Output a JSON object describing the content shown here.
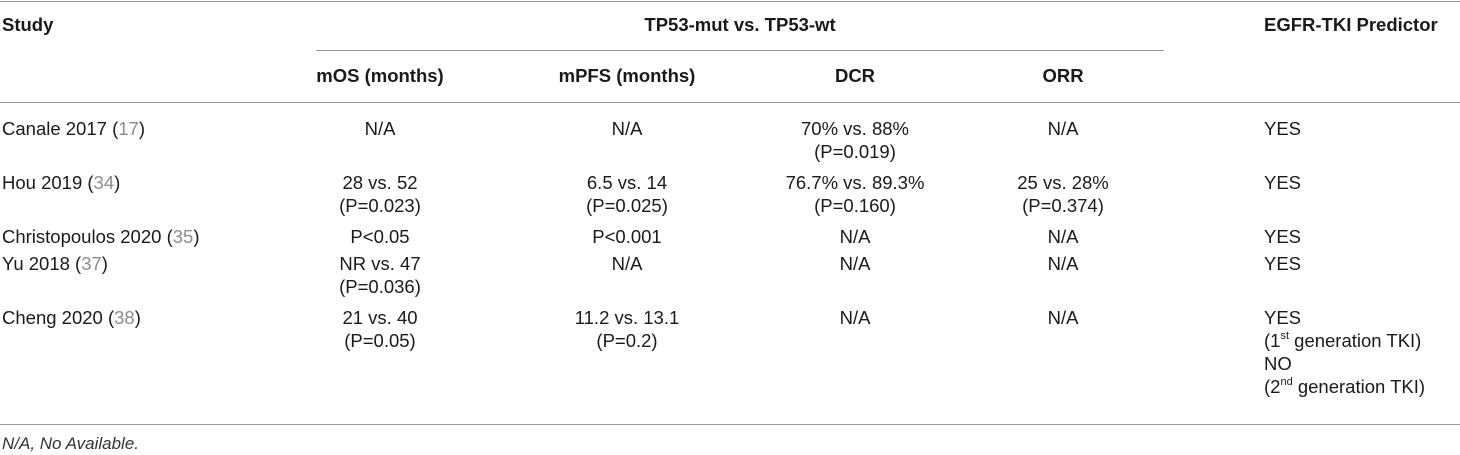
{
  "table": {
    "headers": {
      "study": "Study",
      "group": "TP53-mut vs. TP53-wt",
      "predictor": "EGFR-TKI Predictor",
      "mos": "mOS (months)",
      "mpfs": "mPFS (months)",
      "dcr": "DCR",
      "orr": "ORR"
    },
    "rows": [
      {
        "study": "Canale 2017",
        "ref": "17",
        "mos": [
          "N/A"
        ],
        "mpfs": [
          "N/A"
        ],
        "dcr": [
          "70% vs. 88%",
          "(P=0.019)"
        ],
        "orr": [
          "N/A"
        ],
        "predictor": "YES"
      },
      {
        "study": "Hou 2019",
        "ref": "34",
        "mos": [
          "28 vs. 52",
          "(P=0.023)"
        ],
        "mpfs": [
          "6.5 vs. 14",
          "(P=0.025)"
        ],
        "dcr": [
          "76.7% vs. 89.3%",
          "(P=0.160)"
        ],
        "orr": [
          "25 vs. 28%",
          "(P=0.374)"
        ],
        "predictor": "YES"
      },
      {
        "study": "Christopoulos 2020",
        "ref": "35",
        "mos": [
          "P<0.05"
        ],
        "mpfs": [
          "P<0.001"
        ],
        "dcr": [
          "N/A"
        ],
        "orr": [
          "N/A"
        ],
        "predictor": "YES"
      },
      {
        "study": "Yu 2018",
        "ref": "37",
        "mos": [
          "NR vs. 47",
          "(P=0.036)"
        ],
        "mpfs": [
          "N/A"
        ],
        "dcr": [
          "N/A"
        ],
        "orr": [
          "N/A"
        ],
        "predictor": "YES"
      },
      {
        "study": "Cheng 2020",
        "ref": "38",
        "mos": [
          "21 vs. 40",
          "(P=0.05)"
        ],
        "mpfs": [
          "11.2 vs. 13.1",
          "(P=0.2)"
        ],
        "dcr": [
          "N/A"
        ],
        "orr": [
          "N/A"
        ],
        "predictor": "YES",
        "predictor_detail": [
          {
            "open": "(1",
            "sup": "st",
            "rest": " generation TKI)"
          },
          {
            "plain": "NO"
          },
          {
            "open": "(2",
            "sup": "nd",
            "rest": " generation TKI)"
          }
        ]
      }
    ],
    "footnote": "N/A, No Available."
  }
}
